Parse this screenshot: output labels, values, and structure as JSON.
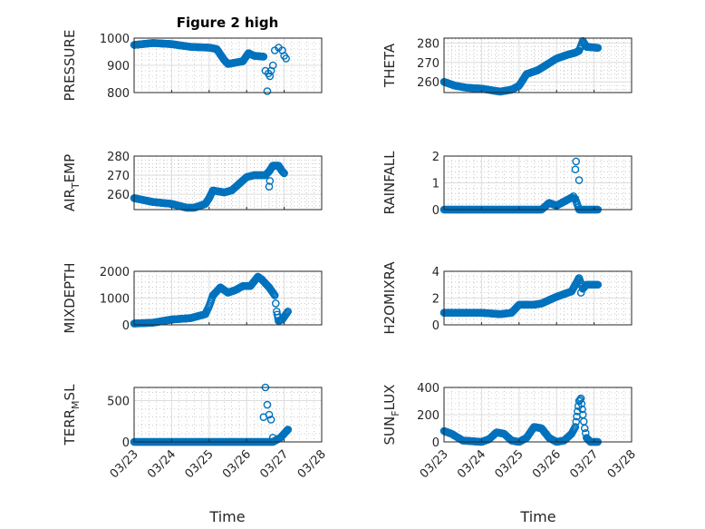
{
  "title": "Figure 2 high",
  "marker_color": "#0072BD",
  "chart_data": [
    {
      "type": "scatter",
      "ylabel": [
        "PRESSURE"
      ],
      "ylim": [
        800,
        1000
      ],
      "yticks": [
        800,
        900,
        1000
      ],
      "xlim": [
        0,
        5
      ],
      "curve": [
        [
          0,
          975
        ],
        [
          0.5,
          982
        ],
        [
          1,
          978
        ],
        [
          1.5,
          968
        ],
        [
          2,
          965
        ],
        [
          2.2,
          960
        ],
        [
          2.4,
          920
        ],
        [
          2.5,
          905
        ],
        [
          2.9,
          915
        ],
        [
          3.05,
          945
        ],
        [
          3.2,
          935
        ],
        [
          3.45,
          932
        ]
      ],
      "extra": [
        [
          3.5,
          880
        ],
        [
          3.55,
          805
        ],
        [
          3.58,
          870
        ],
        [
          3.62,
          860
        ],
        [
          3.65,
          880
        ],
        [
          3.7,
          900
        ],
        [
          3.75,
          955
        ],
        [
          3.85,
          965
        ],
        [
          3.95,
          955
        ],
        [
          4.0,
          935
        ],
        [
          4.05,
          925
        ]
      ]
    },
    {
      "type": "scatter",
      "ylabel": [
        "THETA"
      ],
      "ylim": [
        254.5,
        282.5
      ],
      "yticks": [
        260,
        270,
        280
      ],
      "xlim": [
        0,
        5
      ],
      "curve": [
        [
          0,
          260
        ],
        [
          0.3,
          258
        ],
        [
          0.6,
          257
        ],
        [
          1,
          256.5
        ],
        [
          1.5,
          255
        ],
        [
          1.8,
          256
        ],
        [
          2,
          258
        ],
        [
          2.2,
          264
        ],
        [
          2.5,
          266
        ],
        [
          3,
          272
        ],
        [
          3.3,
          274
        ],
        [
          3.5,
          275
        ],
        [
          3.6,
          276
        ],
        [
          3.7,
          281
        ],
        [
          3.8,
          278
        ],
        [
          4.1,
          277.5
        ]
      ],
      "extra": []
    },
    {
      "type": "scatter",
      "ylabel": [
        "AIR",
        "T",
        "EMP"
      ],
      "ylim": [
        252,
        280
      ],
      "yticks": [
        260,
        270,
        280
      ],
      "xlim": [
        0,
        5
      ],
      "curve": [
        [
          0,
          258
        ],
        [
          0.5,
          256
        ],
        [
          1,
          255
        ],
        [
          1.4,
          253
        ],
        [
          1.6,
          253
        ],
        [
          1.9,
          255
        ],
        [
          2.0,
          258
        ],
        [
          2.1,
          262
        ],
        [
          2.4,
          261
        ],
        [
          2.6,
          262
        ],
        [
          3.0,
          269
        ],
        [
          3.2,
          270
        ],
        [
          3.5,
          270
        ],
        [
          3.6,
          272
        ],
        [
          3.7,
          275
        ],
        [
          3.85,
          275
        ],
        [
          3.95,
          272
        ],
        [
          4.0,
          271
        ]
      ],
      "extra": [
        [
          3.6,
          264
        ],
        [
          3.62,
          267
        ]
      ]
    },
    {
      "type": "scatter",
      "ylabel": [
        "RAINFALL"
      ],
      "ylim": [
        0,
        2
      ],
      "yticks": [
        0,
        1,
        2
      ],
      "xlim": [
        0,
        5
      ],
      "curve": [
        [
          0,
          0
        ],
        [
          2.6,
          0
        ],
        [
          2.8,
          0.25
        ],
        [
          3.0,
          0.15
        ],
        [
          3.2,
          0.3
        ],
        [
          3.4,
          0.45
        ],
        [
          3.5,
          0.4
        ],
        [
          3.6,
          0
        ],
        [
          4.1,
          0
        ]
      ],
      "extra": [
        [
          3.52,
          1.8
        ],
        [
          3.5,
          1.5
        ],
        [
          3.6,
          1.1
        ],
        [
          3.45,
          0.5
        ]
      ]
    },
    {
      "type": "scatter",
      "ylabel": [
        "MIXDEPTH"
      ],
      "ylim": [
        0,
        2000
      ],
      "yticks": [
        0,
        1000,
        2000
      ],
      "xlim": [
        0,
        5
      ],
      "curve": [
        [
          0,
          50
        ],
        [
          0.5,
          80
        ],
        [
          1,
          200
        ],
        [
          1.5,
          250
        ],
        [
          1.9,
          400
        ],
        [
          2.0,
          700
        ],
        [
          2.1,
          1100
        ],
        [
          2.3,
          1400
        ],
        [
          2.5,
          1200
        ],
        [
          2.7,
          1300
        ],
        [
          2.9,
          1450
        ],
        [
          3.1,
          1450
        ],
        [
          3.3,
          1800
        ],
        [
          3.4,
          1700
        ],
        [
          3.6,
          1400
        ],
        [
          3.75,
          1100
        ],
        [
          3.8,
          500
        ],
        [
          3.85,
          150
        ],
        [
          3.95,
          200
        ],
        [
          4.1,
          500
        ]
      ],
      "extra": []
    },
    {
      "type": "scatter",
      "ylabel": [
        "H2OMIXRA"
      ],
      "ylim": [
        0,
        4
      ],
      "yticks": [
        0,
        2,
        4
      ],
      "xlim": [
        0,
        5
      ],
      "curve": [
        [
          0,
          0.9
        ],
        [
          1,
          0.9
        ],
        [
          1.5,
          0.8
        ],
        [
          1.8,
          0.9
        ],
        [
          2.0,
          1.5
        ],
        [
          2.4,
          1.5
        ],
        [
          2.6,
          1.6
        ],
        [
          3.0,
          2.1
        ],
        [
          3.2,
          2.3
        ],
        [
          3.4,
          2.5
        ],
        [
          3.5,
          3.0
        ],
        [
          3.6,
          3.5
        ],
        [
          3.7,
          2.7
        ],
        [
          3.8,
          3.0
        ],
        [
          4.1,
          3.0
        ]
      ],
      "extra": [
        [
          3.65,
          2.4
        ]
      ]
    },
    {
      "type": "scatter",
      "ylabel": [
        "TERR",
        "M",
        "SL"
      ],
      "ylim": [
        0,
        660
      ],
      "yticks": [
        0,
        500
      ],
      "xlim": [
        0,
        5
      ],
      "curve": [
        [
          0,
          0
        ],
        [
          3.45,
          0
        ],
        [
          3.7,
          0
        ],
        [
          3.9,
          50
        ],
        [
          4.1,
          150
        ]
      ],
      "extra": [
        [
          3.45,
          300
        ],
        [
          3.5,
          660
        ],
        [
          3.55,
          450
        ],
        [
          3.6,
          330
        ],
        [
          3.65,
          270
        ],
        [
          3.7,
          50
        ]
      ]
    },
    {
      "type": "scatter",
      "ylabel": [
        "SUN",
        "F",
        "LUX"
      ],
      "ylim": [
        0,
        400
      ],
      "yticks": [
        0,
        200,
        400
      ],
      "xlim": [
        0,
        5
      ],
      "curve": [
        [
          0,
          80
        ],
        [
          0.2,
          60
        ],
        [
          0.5,
          10
        ],
        [
          1,
          0
        ],
        [
          1.2,
          20
        ],
        [
          1.4,
          70
        ],
        [
          1.6,
          60
        ],
        [
          1.8,
          10
        ],
        [
          2.0,
          0
        ],
        [
          2.2,
          30
        ],
        [
          2.4,
          110
        ],
        [
          2.6,
          100
        ],
        [
          2.8,
          30
        ],
        [
          3.0,
          0
        ],
        [
          3.2,
          10
        ],
        [
          3.4,
          60
        ],
        [
          3.5,
          110
        ],
        [
          3.6,
          300
        ],
        [
          3.65,
          320
        ],
        [
          3.7,
          200
        ],
        [
          3.75,
          100
        ],
        [
          3.8,
          30
        ],
        [
          3.9,
          0
        ],
        [
          4.1,
          0
        ]
      ],
      "extra": []
    }
  ],
  "xticks": [
    "03/23",
    "03/24",
    "03/25",
    "03/26",
    "03/27",
    "03/28"
  ],
  "xlabel": "Time"
}
